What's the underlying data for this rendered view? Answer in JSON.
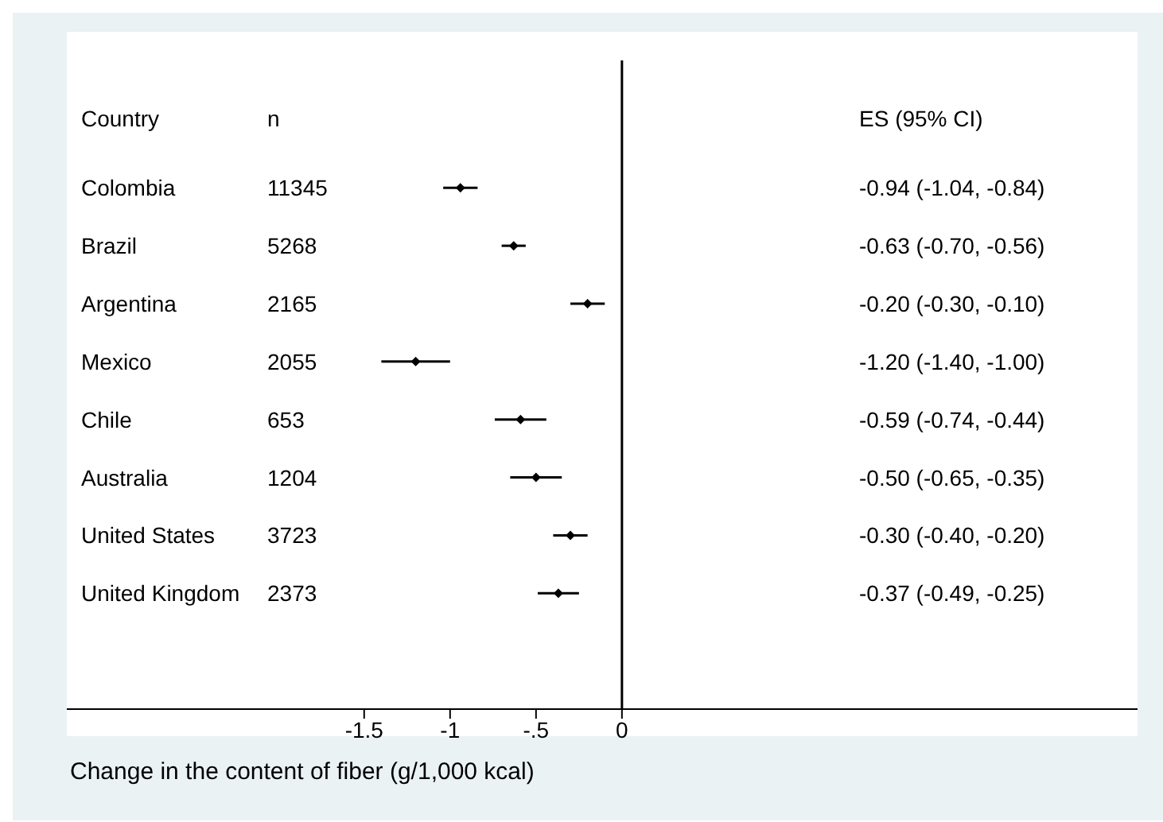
{
  "chart_data": {
    "type": "scatter",
    "orientation": "horizontal",
    "xlabel": "Change in the content of fiber (g/1,000 kcal)",
    "categories": [
      "Colombia",
      "Brazil",
      "Argentina",
      "Mexico",
      "Chile",
      "Australia",
      "United States",
      "United Kingdom"
    ],
    "values": [
      -0.94,
      -0.63,
      -0.2,
      -1.2,
      -0.59,
      -0.5,
      -0.3,
      -0.37
    ],
    "errors": [
      [
        -1.04,
        -0.84
      ],
      [
        -0.7,
        -0.56
      ],
      [
        -0.3,
        -0.1
      ],
      [
        -1.4,
        -1.0
      ],
      [
        -0.74,
        -0.44
      ],
      [
        -0.65,
        -0.35
      ],
      [
        -0.4,
        -0.2
      ],
      [
        -0.49,
        -0.25
      ]
    ],
    "color": "#000000",
    "marker": "diamond",
    "grid": false,
    "legend": false,
    "xlim": [
      -3.23,
      3.0
    ],
    "xticks": [
      {
        "value": -1.5,
        "label": "-1.5"
      },
      {
        "value": -1,
        "label": "-1"
      },
      {
        "value": -0.5,
        "label": "-.5"
      },
      {
        "value": 0,
        "label": "0"
      }
    ],
    "ref_lines": [
      {
        "axis": "x",
        "value": 0,
        "color": "#000000"
      }
    ],
    "annotations": [
      "Country",
      "n",
      "ES (95% CI)",
      "11345",
      "5268",
      "2165",
      "2055",
      "653",
      "1204",
      "3723",
      "2373",
      "-0.94 (-1.04, -0.84)",
      "-0.63 (-0.70, -0.56)",
      "-0.20 (-0.30, -0.10)",
      "-1.20 (-1.40, -1.00)",
      "-0.59 (-0.74, -0.44)",
      "-0.50 (-0.65, -0.35)",
      "-0.30 (-0.40, -0.20)",
      "-0.37 (-0.49, -0.25)"
    ]
  }
}
